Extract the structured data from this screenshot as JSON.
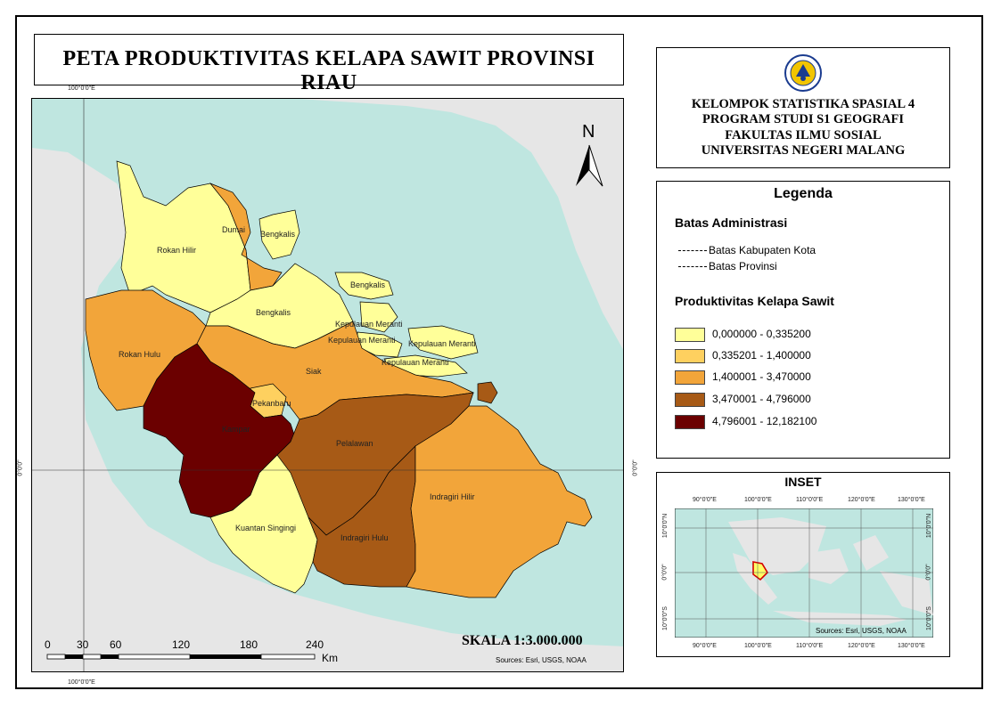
{
  "title": "PETA PRODUKTIVITAS KELAPA SAWIT PROVINSI RIAU",
  "org": {
    "lines": [
      "KELOMPOK STATISTIKA SPASIAL 4",
      "PROGRAM STUDI S1 GEOGRAFI",
      "FAKULTAS ILMU SOSIAL",
      "UNIVERSITAS NEGERI MALANG"
    ],
    "logo_text": "NEGERI MALANG"
  },
  "map": {
    "north_label": "N",
    "graticule": {
      "lon_top": "100°0'0\"E",
      "lon_bottom": "100°0'0\"E",
      "lat_left": "0°0'0\"",
      "lat_right": "0°0'0\""
    },
    "regions": [
      {
        "name": "Rokan Hilir",
        "class": 0
      },
      {
        "name": "Dumai",
        "class": 2
      },
      {
        "name": "Bengkalis",
        "class": 0
      },
      {
        "name": "Bengkalis",
        "class": 0
      },
      {
        "name": "Bengkalis",
        "class": 0
      },
      {
        "name": "Kepulauan Meranti",
        "class": 0
      },
      {
        "name": "Kepulauan Meranti",
        "class": 0
      },
      {
        "name": "Kepulauan Meranti",
        "class": 0
      },
      {
        "name": "Kepulauan Meranti",
        "class": 0
      },
      {
        "name": "Rokan Hulu",
        "class": 2
      },
      {
        "name": "Siak",
        "class": 2
      },
      {
        "name": "Pekanbaru",
        "class": 1
      },
      {
        "name": "Kampar",
        "class": 4
      },
      {
        "name": "Pelalawan",
        "class": 3
      },
      {
        "name": "Kuantan Singingi",
        "class": 0
      },
      {
        "name": "Indragiri Hulu",
        "class": 3
      },
      {
        "name": "Indragiri Hilir",
        "class": 2
      }
    ],
    "scale_text": "SKALA 1:3.000.000",
    "scale_ticks": [
      "0",
      "30",
      "60",
      "120",
      "180",
      "240"
    ],
    "scale_unit": "Km",
    "sources": "Sources: Esri, USGS, NOAA"
  },
  "legend": {
    "title": "Legenda",
    "admin_title": "Batas Administrasi",
    "admin_items": [
      "Batas Kabupaten Kota",
      "Batas Provinsi"
    ],
    "prod_title": "Produktivitas Kelapa  Sawit",
    "classes": [
      {
        "label": "0,000000 - 0,335200",
        "color": "#ffff99"
      },
      {
        "label": "0,335201 - 1,400000",
        "color": "#fed05f"
      },
      {
        "label": "1,400001 - 3,470000",
        "color": "#f2a53a"
      },
      {
        "label": "3,470001 - 4,796000",
        "color": "#a75a16"
      },
      {
        "label": "4,796001 - 12,182100",
        "color": "#6b0000"
      }
    ]
  },
  "inset": {
    "title": "INSET",
    "lon_labels": [
      "90°0'0\"E",
      "100°0'0\"E",
      "110°0'0\"E",
      "120°0'0\"E",
      "130°0'0\"E"
    ],
    "lat_labels": [
      "10°0'0\"N",
      "0°0'0\"",
      "10°0'0\"S"
    ],
    "sources": "Sources: Esri, USGS, NOAA"
  },
  "colors": {
    "sea": "#bfe6e0",
    "land": "#e8e8e8"
  }
}
